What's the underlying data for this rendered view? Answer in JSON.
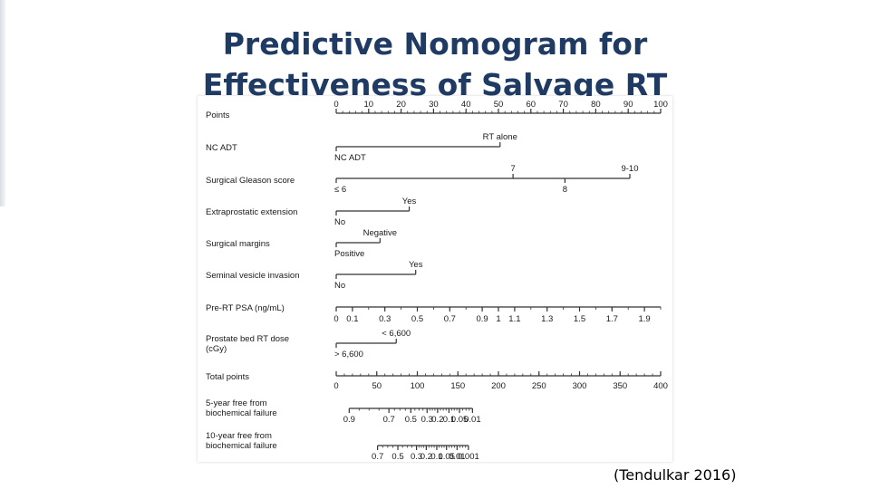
{
  "slide": {
    "title_line1": "Predictive Nomogram for",
    "title_line2": "Effectiveness of Salvage RT",
    "citation": "(Tendulkar 2016)"
  },
  "colors": {
    "title": "#1f3b63",
    "axis": "#333333",
    "text": "#1a1a1a"
  },
  "chart_data": {
    "type": "nomogram",
    "rows": [
      {
        "id": "points",
        "label": [
          "Points"
        ],
        "min": 0,
        "max": 100,
        "ticks": [
          0,
          10,
          20,
          30,
          40,
          50,
          60,
          70,
          80,
          90,
          100
        ],
        "labels": [
          "0",
          "10",
          "20",
          "30",
          "40",
          "50",
          "60",
          "70",
          "80",
          "90",
          "100"
        ],
        "minor_step": 2
      },
      {
        "id": "nc_adt",
        "label": [
          "NC ADT"
        ],
        "options": [
          {
            "text": "RT alone",
            "points": 50.5,
            "side": "above"
          },
          {
            "text": "NC ADT",
            "points": 0,
            "side": "below"
          }
        ]
      },
      {
        "id": "gleason",
        "label": [
          "Surgical Gleason score"
        ],
        "options": [
          {
            "text": "7",
            "points": 54.5,
            "side": "above"
          },
          {
            "text": "9-10",
            "points": 90.5,
            "side": "above"
          },
          {
            "text": "≤ 6",
            "points": 0,
            "side": "below"
          },
          {
            "text": "8",
            "points": 70.5,
            "side": "below"
          }
        ]
      },
      {
        "id": "epe",
        "label": [
          "Extraprostatic extension"
        ],
        "options": [
          {
            "text": "Yes",
            "points": 22.5,
            "side": "above"
          },
          {
            "text": "No",
            "points": 0,
            "side": "below"
          }
        ]
      },
      {
        "id": "margins",
        "label": [
          "Surgical margins"
        ],
        "options": [
          {
            "text": "Negative",
            "points": 13.5,
            "side": "above"
          },
          {
            "text": "Positive",
            "points": 0,
            "side": "below"
          }
        ]
      },
      {
        "id": "svi",
        "label": [
          "Seminal vesicle invasion"
        ],
        "options": [
          {
            "text": "Yes",
            "points": 24.5,
            "side": "above"
          },
          {
            "text": "No",
            "points": 0,
            "side": "below"
          }
        ]
      },
      {
        "id": "psa",
        "label": [
          "Pre-RT PSA (ng/mL)"
        ],
        "scale": {
          "min_value": 0,
          "max_value": 2.0,
          "start_points": 0,
          "end_points": 100
        },
        "ticks": [
          0,
          0.1,
          0.3,
          0.5,
          0.7,
          0.9,
          1,
          1.1,
          1.3,
          1.5,
          1.7,
          1.9
        ],
        "labels": [
          "0",
          "0.1",
          "0.3",
          "0.5",
          "0.7",
          "0.9",
          "1",
          "1.1",
          "1.3",
          "1.5",
          "1.7",
          "1.9"
        ]
      },
      {
        "id": "dose",
        "label": [
          "Prostate bed RT dose",
          "(cGy)"
        ],
        "options": [
          {
            "text": "< 6,600",
            "points": 18.5,
            "side": "above"
          },
          {
            "text": "> 6,600",
            "points": 0,
            "side": "below"
          }
        ]
      },
      {
        "id": "total",
        "label": [
          "Total points"
        ],
        "min": 0,
        "max": 400,
        "ticks": [
          0,
          50,
          100,
          150,
          200,
          250,
          300,
          350,
          400
        ],
        "labels": [
          "0",
          "50",
          "100",
          "150",
          "200",
          "250",
          "300",
          "350",
          "400"
        ],
        "minor_step": 10
      },
      {
        "id": "five_year",
        "label": [
          "5-year free from",
          "biochemical failure"
        ],
        "axis": "total",
        "ticks": [
          {
            "total": 16,
            "text": "0.9"
          },
          {
            "total": 65,
            "text": "0.7"
          },
          {
            "total": 92,
            "text": "0.5"
          },
          {
            "total": 112,
            "text": "0.3"
          },
          {
            "total": 125,
            "text": "0.2"
          },
          {
            "total": 139,
            "text": "0.1"
          },
          {
            "total": 152,
            "text": "0.05"
          },
          {
            "total": 168,
            "text": "0.01"
          }
        ]
      },
      {
        "id": "ten_year",
        "label": [
          "10-year free from",
          "biochemical failure"
        ],
        "axis": "total",
        "ticks": [
          {
            "total": 51,
            "text": "0.7"
          },
          {
            "total": 76,
            "text": "0.5"
          },
          {
            "total": 99,
            "text": "0.3"
          },
          {
            "total": 111,
            "text": "0.2"
          },
          {
            "total": 124,
            "text": "0.1"
          },
          {
            "total": 136,
            "text": "0.05"
          },
          {
            "total": 149,
            "text": "0.01"
          },
          {
            "total": 163,
            "text": "0.001"
          }
        ]
      }
    ]
  }
}
